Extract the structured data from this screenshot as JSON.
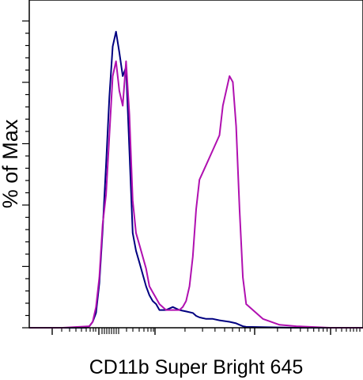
{
  "chart_data": {
    "type": "line",
    "title": "",
    "xlabel": "CD11b Super Bright 645",
    "ylabel": "% of Max",
    "x_scale": "biexponential",
    "x_tick_labels": [],
    "y_tick_labels": [],
    "xlim": [
      0,
      100
    ],
    "ylim": [
      0,
      100
    ],
    "grid": false,
    "legend": "none",
    "series": [
      {
        "color": "#000080",
        "x": [
          0,
          10,
          17,
          18,
          19,
          20,
          21,
          22,
          23,
          24,
          25,
          26,
          27,
          28,
          29,
          30,
          31,
          32,
          33,
          35,
          36,
          37,
          38,
          39,
          41,
          43,
          45,
          47,
          49,
          50,
          51,
          53,
          55,
          57,
          60,
          62,
          63,
          64,
          65,
          70,
          75,
          80,
          90,
          100
        ],
        "y": [
          0,
          0,
          0,
          0.5,
          2,
          5,
          15,
          33,
          55,
          78,
          95,
          100,
          93,
          85,
          88,
          60,
          32,
          26,
          22,
          14,
          11,
          9,
          8,
          6,
          6,
          7,
          6,
          5.5,
          5,
          4,
          3.5,
          3,
          3,
          2.5,
          2,
          1.5,
          1,
          0.5,
          0.3,
          0.2,
          0.1,
          0,
          0,
          0
        ]
      },
      {
        "color": "#B010B0",
        "x": [
          0,
          10,
          18,
          19,
          20,
          21,
          22,
          23,
          24,
          25,
          26,
          27,
          28,
          29,
          30,
          31,
          32,
          33,
          35,
          36,
          37,
          38,
          39,
          41,
          43,
          45,
          46,
          47,
          48,
          49,
          50,
          51,
          53,
          55,
          57,
          58,
          59,
          60,
          61,
          62,
          63,
          64,
          65,
          70,
          75,
          80,
          90,
          100
        ],
        "y": [
          0,
          0,
          0.5,
          2,
          7,
          17,
          35,
          45,
          65,
          85,
          90,
          80,
          75,
          90,
          72,
          43,
          32,
          28,
          20,
          14,
          12,
          10,
          8,
          6,
          6,
          6,
          7,
          9,
          14,
          24,
          40,
          50,
          55,
          60,
          65,
          75,
          80,
          85,
          83,
          68,
          40,
          17,
          8,
          3,
          1,
          0.5,
          0,
          0
        ]
      }
    ]
  }
}
